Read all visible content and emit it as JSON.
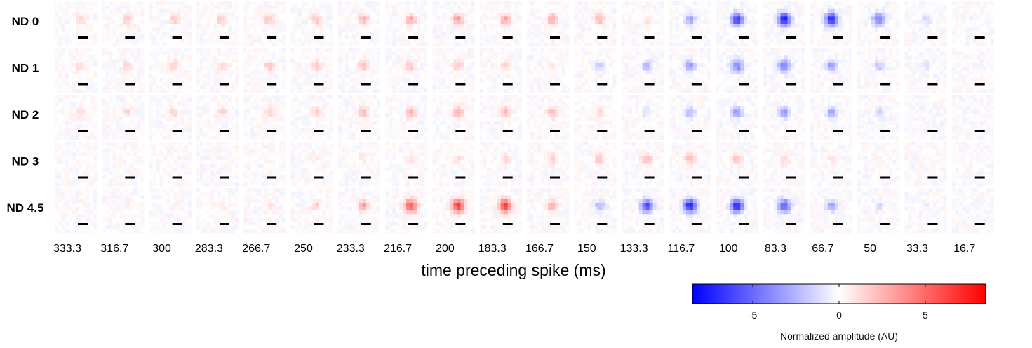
{
  "chart_data": {
    "type": "heatmap",
    "title": "",
    "rows": [
      "ND 0",
      "ND 1",
      "ND 2",
      "ND 3",
      "ND 4.5"
    ],
    "columns": [
      "333.3",
      "316.7",
      "300",
      "283.3",
      "266.7",
      "250",
      "233.3",
      "216.7",
      "200",
      "183.3",
      "166.7",
      "150",
      "133.3",
      "116.7",
      "100",
      "83.3",
      "66.7",
      "50",
      "33.3",
      "16.7"
    ],
    "xlabel": "time preceding spike (ms)",
    "colorbar": {
      "label": "Normalized amplitude (AU)",
      "range": [
        -8.5,
        8.5
      ],
      "ticks": [
        -5,
        0,
        5
      ],
      "tick_labels": [
        "-5",
        "0",
        "5"
      ],
      "colors": {
        "negative": "#0000ff",
        "zero": "#ffffff",
        "positive": "#ff0000"
      }
    },
    "peak_amplitude": [
      [
        1.5,
        1.7,
        1.7,
        1.9,
        2.0,
        2.2,
        2.4,
        2.9,
        3.3,
        3.1,
        3.0,
        2.4,
        1.0,
        -3.2,
        -6.5,
        -7.8,
        -7.5,
        -4.5,
        -1.5,
        -0.4
      ],
      [
        1.5,
        1.6,
        1.6,
        1.7,
        1.8,
        1.9,
        2.0,
        1.9,
        1.8,
        1.5,
        0.8,
        -1.5,
        -2.5,
        -3.5,
        -4.2,
        -4.4,
        -3.8,
        -2.0,
        -0.7,
        -0.3
      ],
      [
        1.2,
        1.3,
        1.3,
        1.4,
        1.5,
        1.8,
        2.3,
        2.6,
        2.8,
        2.6,
        2.2,
        1.2,
        -1.0,
        -2.6,
        -3.6,
        -3.9,
        -3.0,
        -1.8,
        -0.4,
        -0.2
      ],
      [
        0.2,
        0.3,
        0.3,
        0.3,
        0.4,
        0.5,
        0.7,
        0.9,
        1.0,
        1.3,
        1.6,
        2.0,
        2.4,
        2.3,
        2.0,
        1.5,
        0.7,
        0.3,
        0.2,
        0.1
      ],
      [
        0.5,
        0.6,
        0.6,
        0.7,
        0.9,
        1.5,
        3.3,
        5.5,
        6.5,
        6.5,
        3.0,
        -2.5,
        -6.0,
        -7.5,
        -7.5,
        -5.5,
        -3.0,
        -1.2,
        -0.4,
        -0.1
      ]
    ]
  }
}
